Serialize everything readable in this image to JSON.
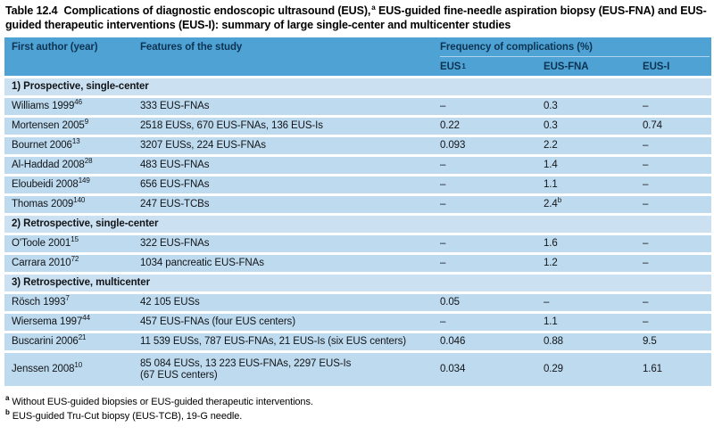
{
  "title": {
    "label": "Table 12.4",
    "pre_sup": "Complications of diagnostic endoscopic ultrasound (EUS),",
    "sup": "a",
    "post_sup": " EUS-guided fine-needle aspiration biopsy (EUS-FNA) and EUS-guided therapeutic interventions (EUS-I): summary of large single-center and multicenter studies"
  },
  "header": {
    "col_author": "First author (year)",
    "col_features": "Features of the study",
    "group_label": "Frequency of complications (%)",
    "sub_eus": "EUS",
    "sub_eus_sup": "1",
    "sub_fna": "EUS-FNA",
    "sub_eusi": "EUS-I"
  },
  "rows": [
    {
      "type": "section",
      "label": "1) Prospective, single-center"
    },
    {
      "type": "data",
      "author": "Williams 1999",
      "ref": "46",
      "features": "333 EUS-FNAs",
      "eus": "–",
      "fna": "0.3",
      "fna_sup": "",
      "eusi": "–"
    },
    {
      "type": "data",
      "author": "Mortensen 2005",
      "ref": "9",
      "features": "2518 EUSs, 670 EUS-FNAs, 136 EUS-Is",
      "eus": "0.22",
      "fna": "0.3",
      "fna_sup": "",
      "eusi": "0.74"
    },
    {
      "type": "data",
      "author": "Bournet 2006",
      "ref": "13",
      "features": "3207 EUSs, 224 EUS-FNAs",
      "eus": "0.093",
      "fna": "2.2",
      "fna_sup": "",
      "eusi": "–"
    },
    {
      "type": "data",
      "author": "Al-Haddad 2008",
      "ref": "28",
      "features": "483 EUS-FNAs",
      "eus": "–",
      "fna": "1.4",
      "fna_sup": "",
      "eusi": "–"
    },
    {
      "type": "data",
      "author": "Eloubeidi 2008",
      "ref": "149",
      "features": "656 EUS-FNAs",
      "eus": "–",
      "fna": "1.1",
      "fna_sup": "",
      "eusi": "–"
    },
    {
      "type": "data",
      "author": "Thomas 2009",
      "ref": "140",
      "features": "247 EUS-TCBs",
      "eus": "–",
      "fna": "2.4",
      "fna_sup": "b",
      "eusi": "–"
    },
    {
      "type": "section",
      "label": "2) Retrospective, single-center"
    },
    {
      "type": "data",
      "author": "O'Toole 2001",
      "ref": "15",
      "features": "322 EUS-FNAs",
      "eus": "–",
      "fna": "1.6",
      "fna_sup": "",
      "eusi": "–"
    },
    {
      "type": "data",
      "author": "Carrara 2010",
      "ref": "72",
      "features": "1034 pancreatic EUS-FNAs",
      "eus": "–",
      "fna": "1.2",
      "fna_sup": "",
      "eusi": "–"
    },
    {
      "type": "section",
      "label": "3) Retrospective, multicenter"
    },
    {
      "type": "data",
      "author": "Rösch 1993",
      "ref": "7",
      "features": "42 105 EUSs",
      "eus": "0.05",
      "fna": "–",
      "fna_sup": "",
      "eusi": "–"
    },
    {
      "type": "data",
      "author": "Wiersema 1997",
      "ref": "44",
      "features": "457 EUS-FNAs (four EUS centers)",
      "eus": "–",
      "fna": "1.1",
      "fna_sup": "",
      "eusi": "–"
    },
    {
      "type": "data",
      "author": "Buscarini 2006",
      "ref": "21",
      "features": "11 539 EUSs, 787 EUS-FNAs, 21 EUS-Is (six EUS centers)",
      "eus": "0.046",
      "fna": "0.88",
      "fna_sup": "",
      "eusi": "9.5"
    },
    {
      "type": "data",
      "author": "Jenssen 2008",
      "ref": "10",
      "features": "85 084 EUSs, 13 223 EUS-FNAs, 2297 EUS-Is",
      "features_line2": "(67 EUS centers)",
      "eus": "0.034",
      "fna": "0.29",
      "fna_sup": "",
      "eusi": "1.61"
    }
  ],
  "footnotes": [
    {
      "sup": "a",
      "text": "Without EUS-guided biopsies or EUS-guided therapeutic interventions."
    },
    {
      "sup": "b",
      "text": "EUS-guided Tru-Cut biopsy (EUS-TCB), 19-G needle."
    }
  ],
  "colors": {
    "header_bg": "#4ea3d4",
    "row_bg": "#bedaee",
    "section_bg": "#cbe1f1",
    "header_text": "#0e3352",
    "text": "#121519",
    "divider": "#ffffff"
  }
}
